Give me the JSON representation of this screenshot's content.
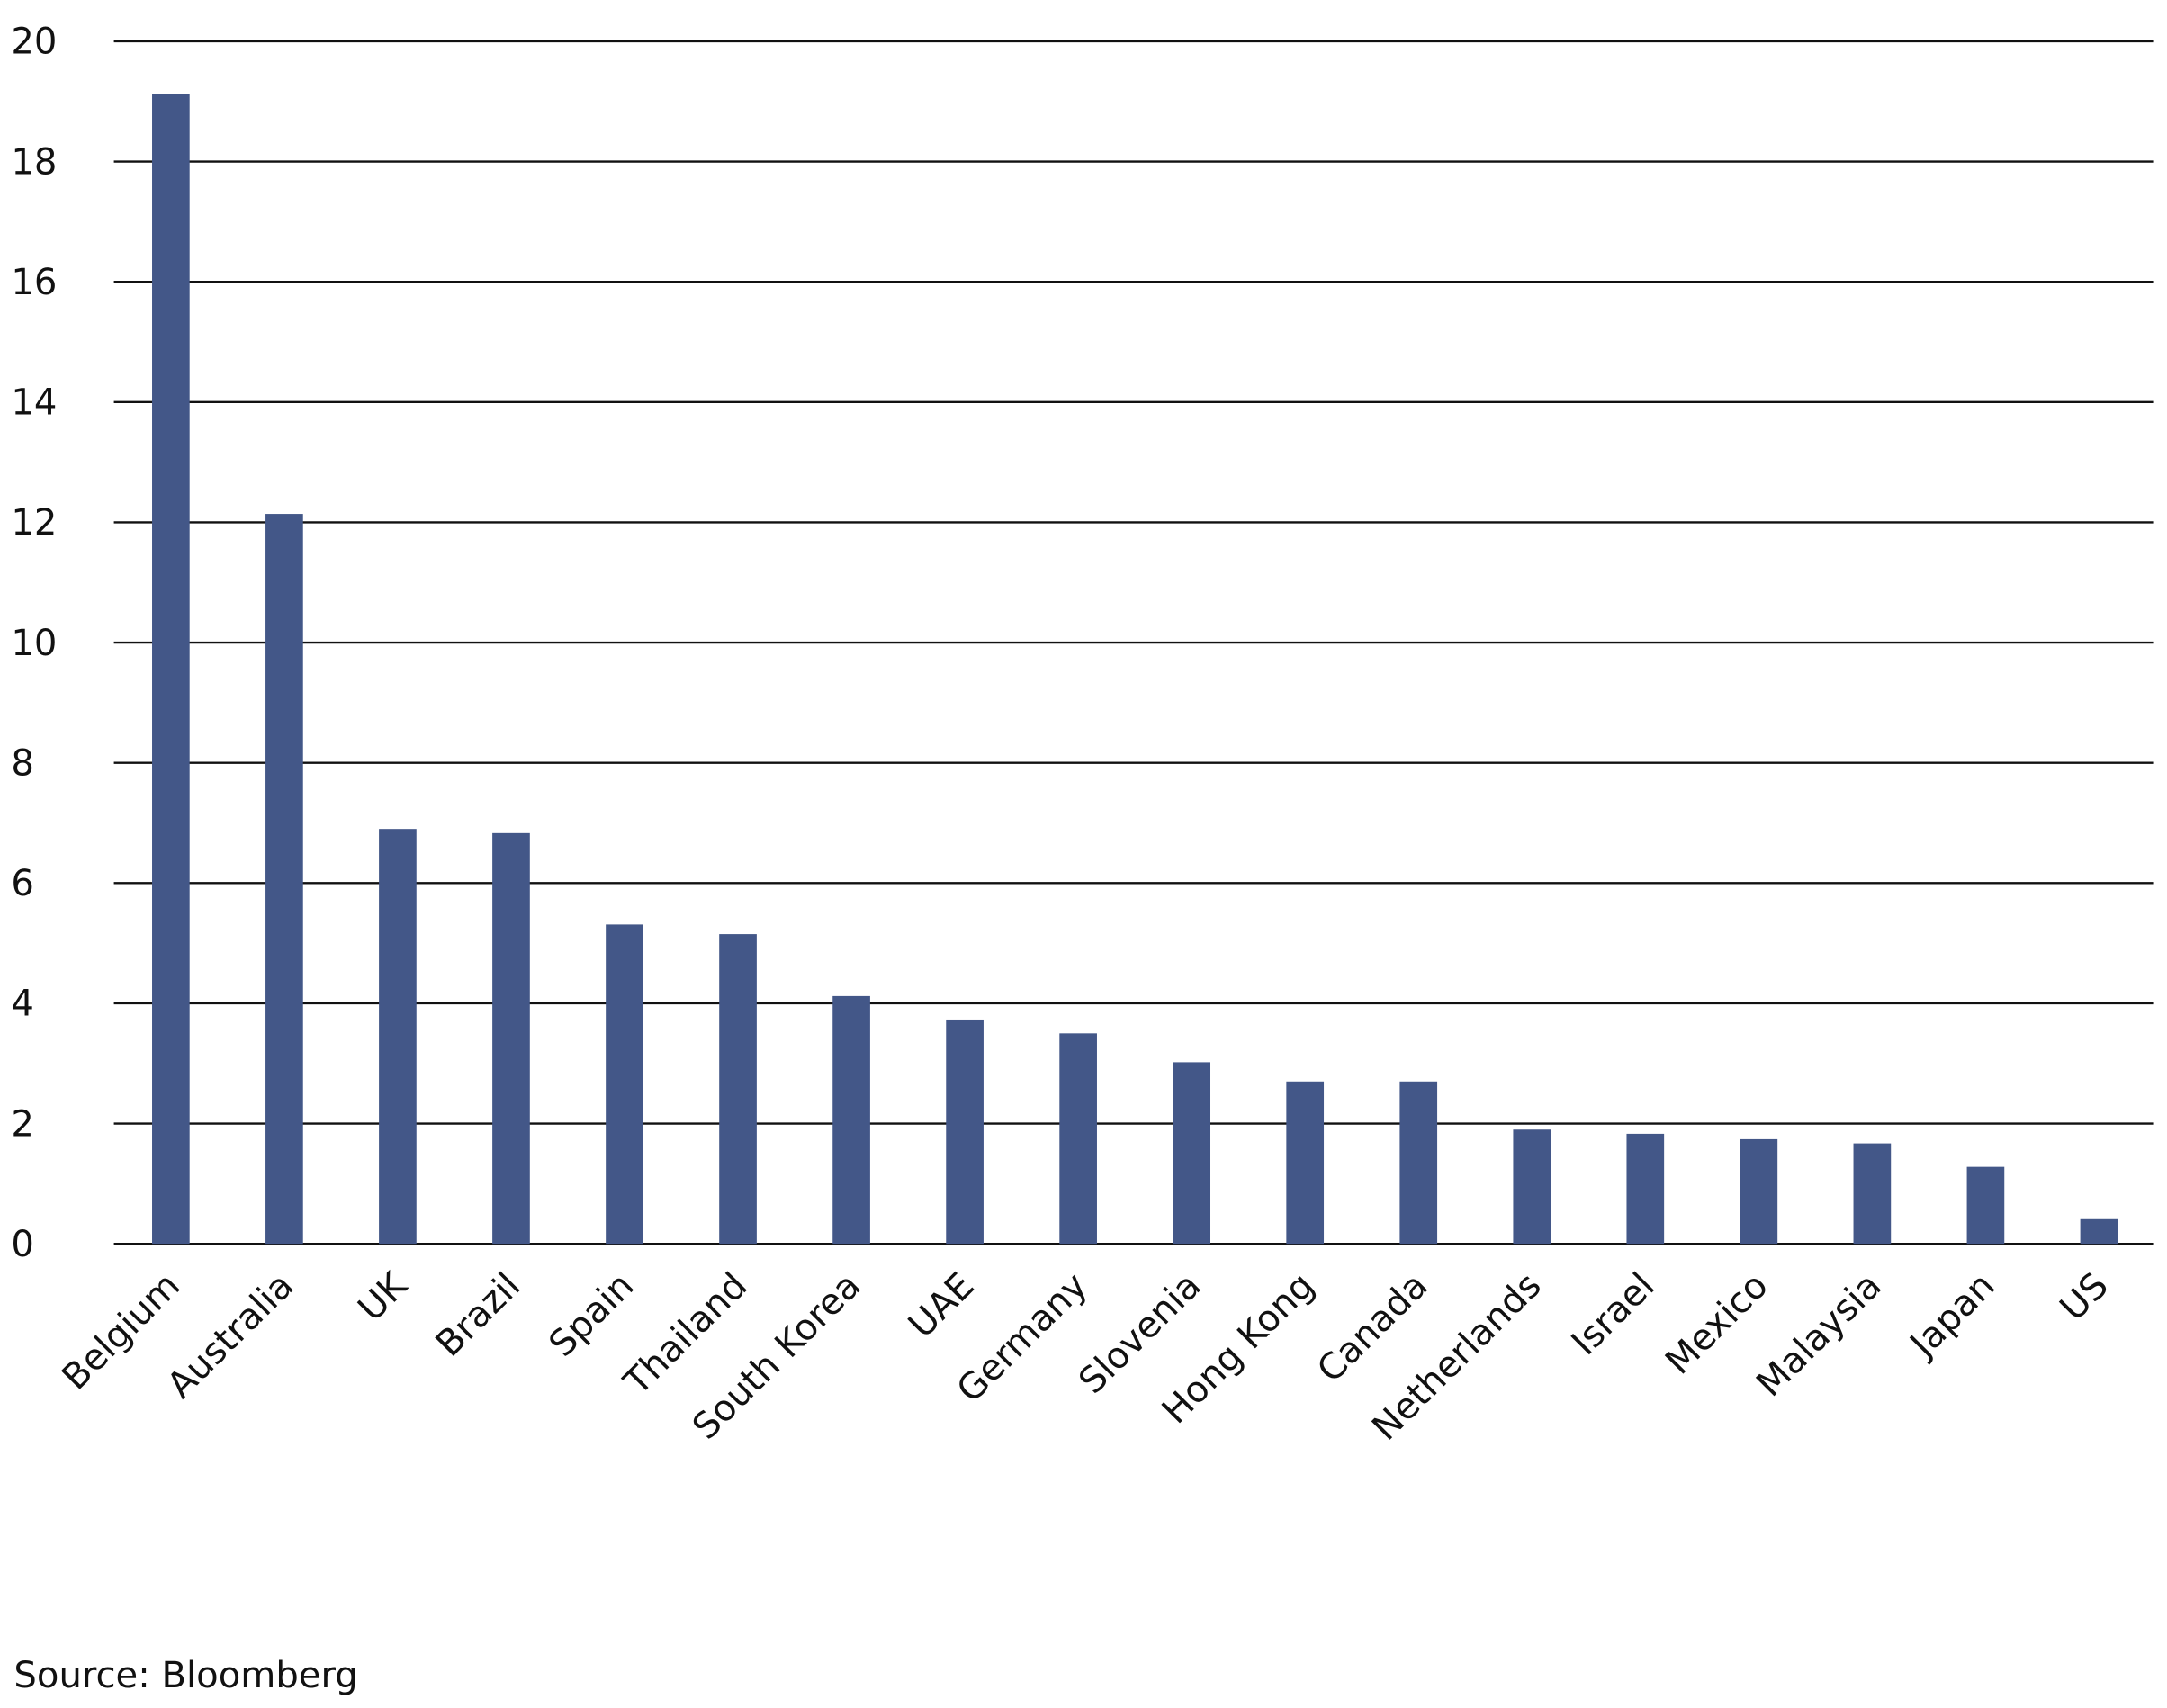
{
  "chart_data": {
    "type": "bar",
    "categories": [
      "Belgium",
      "Australia",
      "UK",
      "Brazil",
      "Spain",
      "Thailand",
      "South Korea",
      "UAE",
      "Germany",
      "Slovenia",
      "Hong Kong",
      "Canada",
      "Netherlands",
      "Israel",
      "Mexico",
      "Malaysia",
      "Japan",
      "US"
    ],
    "values": [
      19.13,
      12.14,
      6.9,
      6.83,
      5.31,
      5.15,
      4.12,
      3.73,
      3.5,
      3.02,
      2.7,
      2.7,
      1.9,
      1.83,
      1.74,
      1.67,
      1.28,
      0.41
    ],
    "color": "#435788",
    "ylim": [
      0,
      20
    ],
    "yticks": [
      0,
      2,
      4,
      6,
      8,
      10,
      12,
      14,
      16,
      18,
      20
    ],
    "grid": true,
    "source": "Source: Bloomberg"
  }
}
